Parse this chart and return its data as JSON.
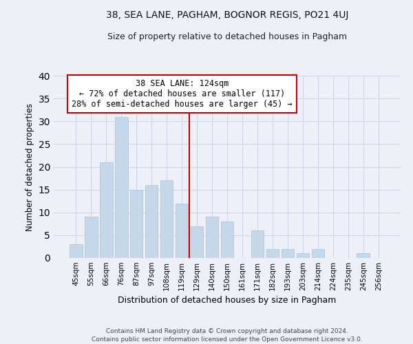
{
  "title1": "38, SEA LANE, PAGHAM, BOGNOR REGIS, PO21 4UJ",
  "title2": "Size of property relative to detached houses in Pagham",
  "xlabel": "Distribution of detached houses by size in Pagham",
  "ylabel": "Number of detached properties",
  "categories": [
    "45sqm",
    "55sqm",
    "66sqm",
    "76sqm",
    "87sqm",
    "97sqm",
    "108sqm",
    "119sqm",
    "129sqm",
    "140sqm",
    "150sqm",
    "161sqm",
    "171sqm",
    "182sqm",
    "193sqm",
    "203sqm",
    "214sqm",
    "224sqm",
    "235sqm",
    "245sqm",
    "256sqm"
  ],
  "values": [
    3,
    9,
    21,
    31,
    15,
    16,
    17,
    12,
    7,
    9,
    8,
    0,
    6,
    2,
    2,
    1,
    2,
    0,
    0,
    1,
    0
  ],
  "bar_color": "#c5d8ea",
  "bar_edge_color": "#afc8de",
  "vline_x": 7.5,
  "vline_color": "#cc0000",
  "annotation_title": "38 SEA LANE: 124sqm",
  "annotation_line1": "← 72% of detached houses are smaller (117)",
  "annotation_line2": "28% of semi-detached houses are larger (45) →",
  "annotation_box_color": "#ffffff",
  "annotation_box_edge": "#cc0000",
  "ylim": [
    0,
    40
  ],
  "yticks": [
    0,
    5,
    10,
    15,
    20,
    25,
    30,
    35,
    40
  ],
  "footer1": "Contains HM Land Registry data © Crown copyright and database right 2024.",
  "footer2": "Contains public sector information licensed under the Open Government Licence v3.0.",
  "bg_color": "#eef0f8",
  "grid_color": "#d0d4e8"
}
